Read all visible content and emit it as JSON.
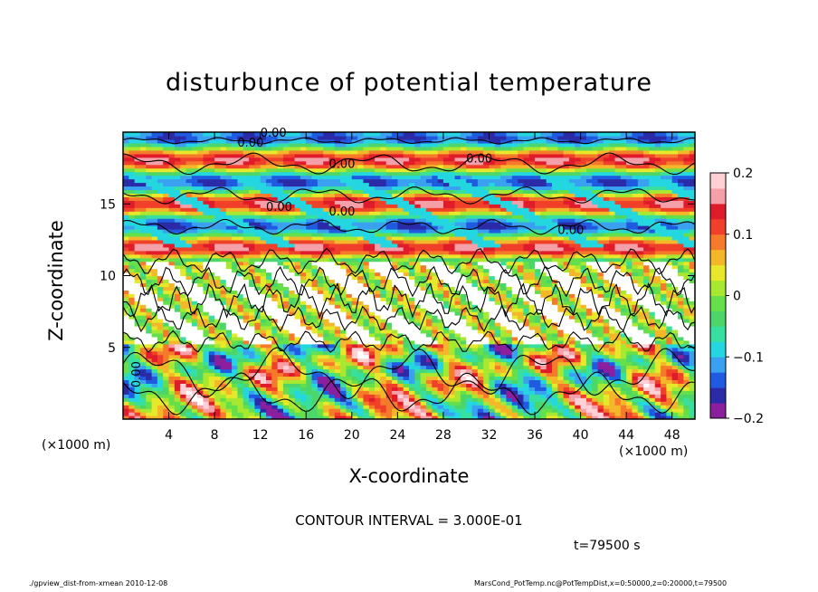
{
  "chart_data": {
    "type": "heatmap",
    "title": "disturbunce of potential temperature",
    "xlabel": "X-coordinate",
    "ylabel": "Z-coordinate",
    "x_unit_label": "(×1000 m)",
    "z_unit_label": "(×1000 m)",
    "xlim": [
      0,
      50
    ],
    "ylim": [
      0,
      20
    ],
    "x_ticks": [
      4,
      8,
      12,
      16,
      20,
      24,
      28,
      32,
      36,
      40,
      44,
      48
    ],
    "y_ticks": [
      5,
      10,
      15
    ],
    "colorbar": {
      "range": [
        -0.2,
        0.2
      ],
      "tick_values": [
        0.2,
        0.1,
        0,
        -0.1,
        -0.2
      ],
      "tick_labels": [
        "0.2",
        "0.1",
        "0",
        "−0.1",
        "−0.2"
      ],
      "colors": [
        "#8b1f9e",
        "#2b2ba8",
        "#1f5be0",
        "#3aa0f0",
        "#24d6e0",
        "#38e0a0",
        "#4cd66a",
        "#66e04a",
        "#a8e830",
        "#e8e82a",
        "#f5b72a",
        "#f57a2a",
        "#f0402a",
        "#e01c2a",
        "#f5a0a8",
        "#ffd0d4"
      ]
    },
    "contour_labels": [
      "0.00",
      "0.00",
      "0.00",
      "0.00",
      "0.00",
      "0.00",
      "0.00",
      "0.00"
    ],
    "contour_interval_text": "CONTOUR INTERVAL = 3.000E-01",
    "time_text": "t=79500 s",
    "footer_left": "./gpview_dist-from-xmean  2010-12-08",
    "footer_right": "MarsCond_PotTemp.nc@PotTempDist,x=0:50000,z=0:20000,t=79500"
  }
}
